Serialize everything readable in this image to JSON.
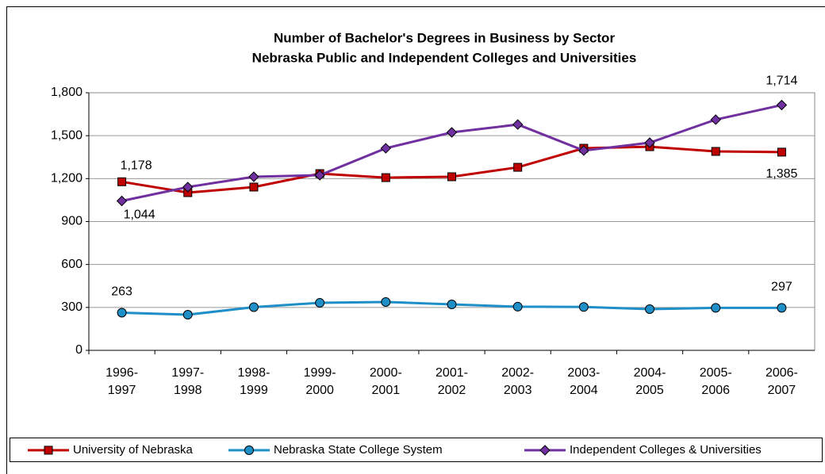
{
  "chart_data": {
    "type": "line",
    "title": "Number of Bachelor's Degrees in Business by Sector",
    "subtitle": "Nebraska Public and Independent Colleges and Universities",
    "categories": [
      "1996-1997",
      "1997-1998",
      "1998-1999",
      "1999-2000",
      "2000-2001",
      "2001-2002",
      "2002-2003",
      "2003-2004",
      "2004-2005",
      "2005-2006",
      "2006-2007"
    ],
    "series": [
      {
        "name": "University of Nebraska",
        "color": "#c00000",
        "marker": "square",
        "values": [
          1178,
          1102,
          1141,
          1235,
          1207,
          1213,
          1279,
          1412,
          1423,
          1390,
          1385
        ],
        "value_labels": [
          "1,178",
          null,
          null,
          null,
          null,
          null,
          null,
          null,
          null,
          null,
          "1,385"
        ]
      },
      {
        "name": "Nebraska State College System",
        "color": "#1f8fc8",
        "marker": "circle",
        "values": [
          263,
          249,
          302,
          332,
          338,
          321,
          305,
          303,
          288,
          297,
          297
        ],
        "value_labels": [
          "263",
          null,
          null,
          null,
          null,
          null,
          null,
          null,
          null,
          null,
          "297"
        ]
      },
      {
        "name": "Independent Colleges & Universities",
        "color": "#7030a0",
        "marker": "diamond",
        "values": [
          1044,
          1141,
          1213,
          1224,
          1412,
          1523,
          1578,
          1396,
          1451,
          1612,
          1714
        ],
        "value_labels": [
          "1,044",
          null,
          null,
          null,
          null,
          null,
          null,
          null,
          null,
          null,
          "1,714"
        ]
      }
    ],
    "ylim": [
      0,
      1800
    ],
    "yticks": [
      0,
      300,
      600,
      900,
      {
        "value": 1200,
        "label": "1,200"
      },
      {
        "value": 1500,
        "label": "1,500"
      },
      {
        "value": 1800,
        "label": "1,800"
      }
    ],
    "grid": true,
    "legend": "bottom"
  }
}
